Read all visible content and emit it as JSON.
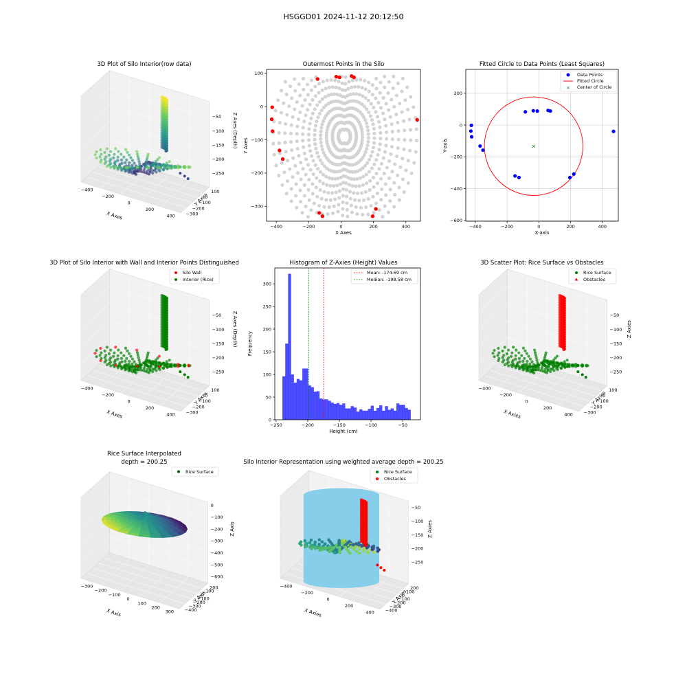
{
  "figure": {
    "suptitle": "HSGGD01 2024-11-12 20:12:50"
  },
  "chart_data": [
    {
      "id": "p1",
      "type": "scatter3d",
      "title": "3D Plot of Silo Interior(row data)",
      "xlabel": "X Axes",
      "ylabel": "Y Axes",
      "zlabel": "Z Axes (Depth)",
      "xticks": [
        -400,
        -200,
        0,
        200,
        400
      ],
      "yticks": [
        -300,
        -200,
        -100,
        0,
        100
      ],
      "zticks": [
        -50,
        -100,
        -150,
        -200,
        -250
      ],
      "colormap": "viridis"
    },
    {
      "id": "p2",
      "type": "scatter",
      "title": "Outermost Points in the Silo",
      "xlabel": "X Axes",
      "ylabel": "Y Axes",
      "xlim": [
        -460,
        490
      ],
      "ylim": [
        -345,
        112
      ],
      "xticks": [
        -400,
        -200,
        0,
        200,
        400
      ],
      "yticks": [
        100,
        0,
        -100,
        -200,
        -300
      ],
      "interior_color": "#d3d3d3",
      "outer_color": "#ff0000",
      "outer_points": [
        [
          -425,
          -2
        ],
        [
          -428,
          -38
        ],
        [
          -423,
          -74
        ],
        [
          -380,
          -132
        ],
        [
          -360,
          -158
        ],
        [
          -145,
          83
        ],
        [
          -30,
          90
        ],
        [
          -10,
          88
        ],
        [
          65,
          92
        ],
        [
          80,
          88
        ],
        [
          470,
          -40
        ],
        [
          -135,
          -320
        ],
        [
          -115,
          -330
        ],
        [
          195,
          -330
        ],
        [
          215,
          -308
        ]
      ]
    },
    {
      "id": "p3",
      "type": "scatter",
      "title": "Fitted Circle to Data Points (Least Squares)",
      "xlabel": "X-axis",
      "ylabel": "Y-axis",
      "xlim": [
        -460,
        500
      ],
      "ylim": [
        -605,
        350
      ],
      "xticks": [
        -400,
        -200,
        0,
        200,
        400
      ],
      "yticks": [
        200,
        0,
        -200,
        -400,
        -600
      ],
      "grid": true,
      "legend": "top-right",
      "legend_labels": [
        "Data Points",
        "Fitted Circle",
        "Center of Circle"
      ],
      "data_points": [
        [
          -425,
          -2
        ],
        [
          -428,
          -38
        ],
        [
          -423,
          -74
        ],
        [
          -370,
          -132
        ],
        [
          -352,
          -158
        ],
        [
          -85,
          83
        ],
        [
          -35,
          90
        ],
        [
          -10,
          88
        ],
        [
          58,
          92
        ],
        [
          72,
          88
        ],
        [
          470,
          -40
        ],
        [
          -150,
          -320
        ],
        [
          -125,
          -330
        ],
        [
          195,
          -330
        ],
        [
          220,
          -308
        ]
      ],
      "circle": {
        "cx": -33,
        "cy": -133,
        "r": 310
      },
      "center": [
        -33,
        -133
      ],
      "colors": {
        "points": "#0000ff",
        "circle": "#ff0000",
        "center": "#008000"
      }
    },
    {
      "id": "p4",
      "type": "scatter3d",
      "title": "3D Plot of Silo Interior with Wall and Interior Points Distinguished",
      "xlabel": "X Axes",
      "ylabel": "Y Axes",
      "zlabel": "Z Axes (Depth)",
      "xticks": [
        -400,
        -200,
        0,
        200,
        400
      ],
      "yticks": [
        -300,
        -200,
        -100,
        0,
        100
      ],
      "zticks": [
        -50,
        -100,
        -150,
        -200,
        -250
      ],
      "legend_labels": [
        "Silo Wall",
        "Interior (Rice)"
      ],
      "colors": {
        "wall": "#ff0000",
        "interior": "#008000"
      }
    },
    {
      "id": "p5",
      "type": "histogram",
      "title": "Histogram of Z-Axies (Height) Values",
      "xlabel": "Height (cm)",
      "ylabel": "Frequency",
      "xlim": [
        -252,
        -22
      ],
      "ylim": [
        0,
        335
      ],
      "xticks": [
        -250,
        -200,
        -150,
        -100,
        -50
      ],
      "yticks": [
        0,
        50,
        100,
        150,
        200,
        250,
        300
      ],
      "bin_start": -240,
      "bin_width": 4.5,
      "counts": [
        96,
        168,
        322,
        100,
        82,
        90,
        87,
        113,
        113,
        76,
        72,
        62,
        63,
        47,
        45,
        45,
        42,
        38,
        35,
        37,
        33,
        36,
        25,
        25,
        30,
        27,
        18,
        23,
        20,
        20,
        24,
        31,
        20,
        26,
        32,
        20,
        30,
        22,
        25,
        20,
        36,
        33,
        33,
        26,
        22
      ],
      "mean": -174.69,
      "median": -198.58,
      "legend_labels": [
        "Mean: -174.69 cm",
        "Median: -198.58 cm"
      ],
      "colors": {
        "bars": "#0000ff",
        "mean": "#ff0000",
        "median": "#008000"
      }
    },
    {
      "id": "p6",
      "type": "scatter3d",
      "title": "3D Scatter Plot: Rice Surface vs Obstacles",
      "xlabel": "X Axies",
      "ylabel": "Y Axies",
      "zlabel": "Z Axies",
      "xticks": [
        -400,
        -200,
        0,
        200,
        400
      ],
      "yticks": [
        -300,
        -200,
        -100,
        0,
        100
      ],
      "zticks": [
        -50,
        -100,
        -150,
        -200,
        -250
      ],
      "legend_labels": [
        "Rice Surface",
        "Obstacles"
      ],
      "colors": {
        "rice": "#008000",
        "obstacles": "#ff0000"
      }
    },
    {
      "id": "p7",
      "type": "surface3d",
      "title": "Rice Surface Interpolated",
      "subtitle": "depth = 200.25",
      "xlabel": "X Axis",
      "ylabel": "Y Axis",
      "zlabel": "Z Axis",
      "xticks": [
        -300,
        -200,
        -100,
        0,
        100,
        200,
        300
      ],
      "yticks": [
        -400,
        -300,
        -200,
        -100,
        0,
        100,
        200
      ],
      "zticks": [
        0,
        -100,
        -200,
        -300,
        -400,
        -500,
        -600
      ],
      "legend_labels": [
        "Rice Surface"
      ],
      "colormap": "viridis"
    },
    {
      "id": "p8",
      "type": "scatter3d",
      "title": "Silo Interior Representation using weighted average depth = 200.25",
      "xlabel": "X Axies",
      "ylabel": "Y Axies",
      "zlabel": "Z Axies",
      "xticks": [
        -400,
        -200,
        0,
        200,
        400
      ],
      "yticks": [
        -400,
        -300,
        -200,
        -100,
        0,
        100,
        200
      ],
      "zticks": [
        -50,
        -100,
        -150,
        -200,
        -250
      ],
      "legend_labels": [
        "Rice Surface",
        "Obstacles"
      ],
      "colors": {
        "rice": "#008000",
        "obstacles": "#ff0000",
        "silo": "#87ceeb"
      }
    }
  ]
}
